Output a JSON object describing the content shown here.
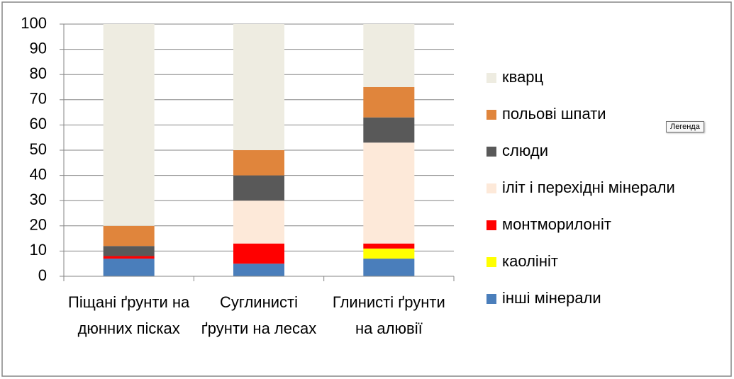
{
  "chart_data": {
    "type": "stacked_bar",
    "categories": [
      "Піщані ґрунти на дюнних пісках",
      "Суглинисті ґрунти на лесах",
      "Глинисті ґрунти на алювії"
    ],
    "series": [
      {
        "name": "інші мінерали",
        "color": "#4a7ebb",
        "values": [
          7,
          5,
          7
        ]
      },
      {
        "name": "каолініт",
        "color": "#ffff00",
        "values": [
          0,
          0,
          4
        ]
      },
      {
        "name": "монтморилоніт",
        "color": "#ff0000",
        "values": [
          1,
          8,
          2
        ]
      },
      {
        "name": "іліт і перехідні мінерали",
        "color": "#fde9d9",
        "values": [
          0,
          17,
          40
        ]
      },
      {
        "name": "слюди",
        "color": "#595959",
        "values": [
          4,
          10,
          10
        ]
      },
      {
        "name": "польові шпати",
        "color": "#e0853c",
        "values": [
          8,
          10,
          12
        ]
      },
      {
        "name": "кварц",
        "color": "#eeece1",
        "values": [
          80,
          50,
          25
        ]
      }
    ],
    "ylim": [
      0,
      100
    ],
    "yticks": [
      0,
      10,
      20,
      30,
      40,
      50,
      60,
      70,
      80,
      90,
      100
    ],
    "grid": true,
    "legend": "right"
  },
  "tooltip": "Легенда"
}
